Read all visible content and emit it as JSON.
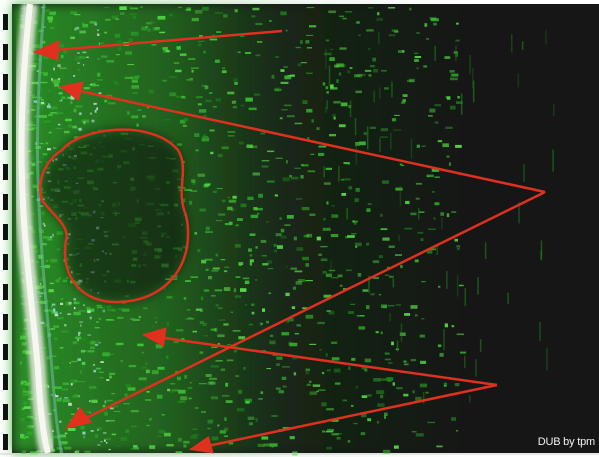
{
  "image": {
    "watermark_text": "DUB by tpm",
    "colors": {
      "background": "#161616",
      "tissue_green": "#2fa62a",
      "skin_line": "#e9ece4",
      "annotation_red": "#e0301e",
      "scale_marks": "#111111"
    }
  }
}
